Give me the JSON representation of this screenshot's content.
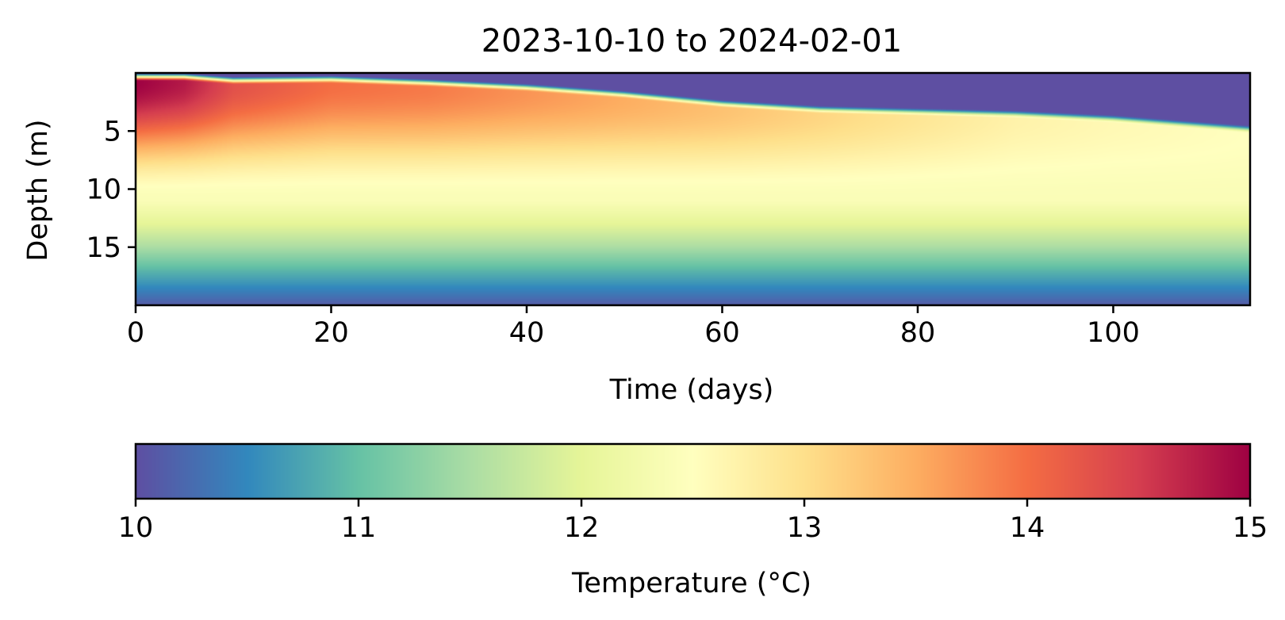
{
  "chart_data": [
    {
      "type": "heatmap",
      "title": "2023-10-10 to 2024-02-01",
      "xlabel": "Time (days)",
      "ylabel": "Depth (m)",
      "xlim": [
        0,
        114
      ],
      "ylim": [
        20,
        0
      ],
      "y_inverted": true,
      "x_ticks": [
        0,
        20,
        40,
        60,
        80,
        100
      ],
      "x_tick_labels": [
        "0",
        "20",
        "40",
        "60",
        "80",
        "100"
      ],
      "y_ticks": [
        5,
        10,
        15
      ],
      "y_tick_labels": [
        "5",
        "10",
        "15"
      ],
      "colormap": "Spectral_r",
      "value_range": [
        10,
        15
      ],
      "surface_cold_layer_bottom_depth_m": {
        "t": [
          0,
          5,
          10,
          20,
          30,
          40,
          50,
          60,
          70,
          80,
          90,
          100,
          114
        ],
        "depth": [
          0,
          0,
          0.3,
          0.2,
          0.5,
          0.9,
          1.5,
          2.3,
          2.8,
          3.0,
          3.2,
          3.6,
          4.5
        ]
      },
      "warm_core_max_temperature_c": {
        "t": [
          0,
          5,
          10,
          20,
          30,
          40,
          50,
          60,
          70,
          80,
          90,
          100,
          114
        ],
        "value": [
          15.0,
          14.8,
          14.3,
          14.0,
          13.9,
          13.7,
          13.5,
          13.3,
          13.1,
          12.9,
          12.7,
          12.6,
          12.5
        ]
      },
      "deep_profile": {
        "depth": [
          11,
          13,
          15,
          17,
          18.5,
          20
        ],
        "value": [
          12.4,
          12.0,
          11.5,
          10.9,
          10.5,
          10.1
        ]
      }
    },
    {
      "type": "colorbar",
      "label": "Temperature (°C)",
      "range": [
        10,
        15
      ],
      "ticks": [
        10,
        11,
        12,
        13,
        14,
        15
      ],
      "tick_labels": [
        "10",
        "11",
        "12",
        "13",
        "14",
        "15"
      ]
    }
  ]
}
